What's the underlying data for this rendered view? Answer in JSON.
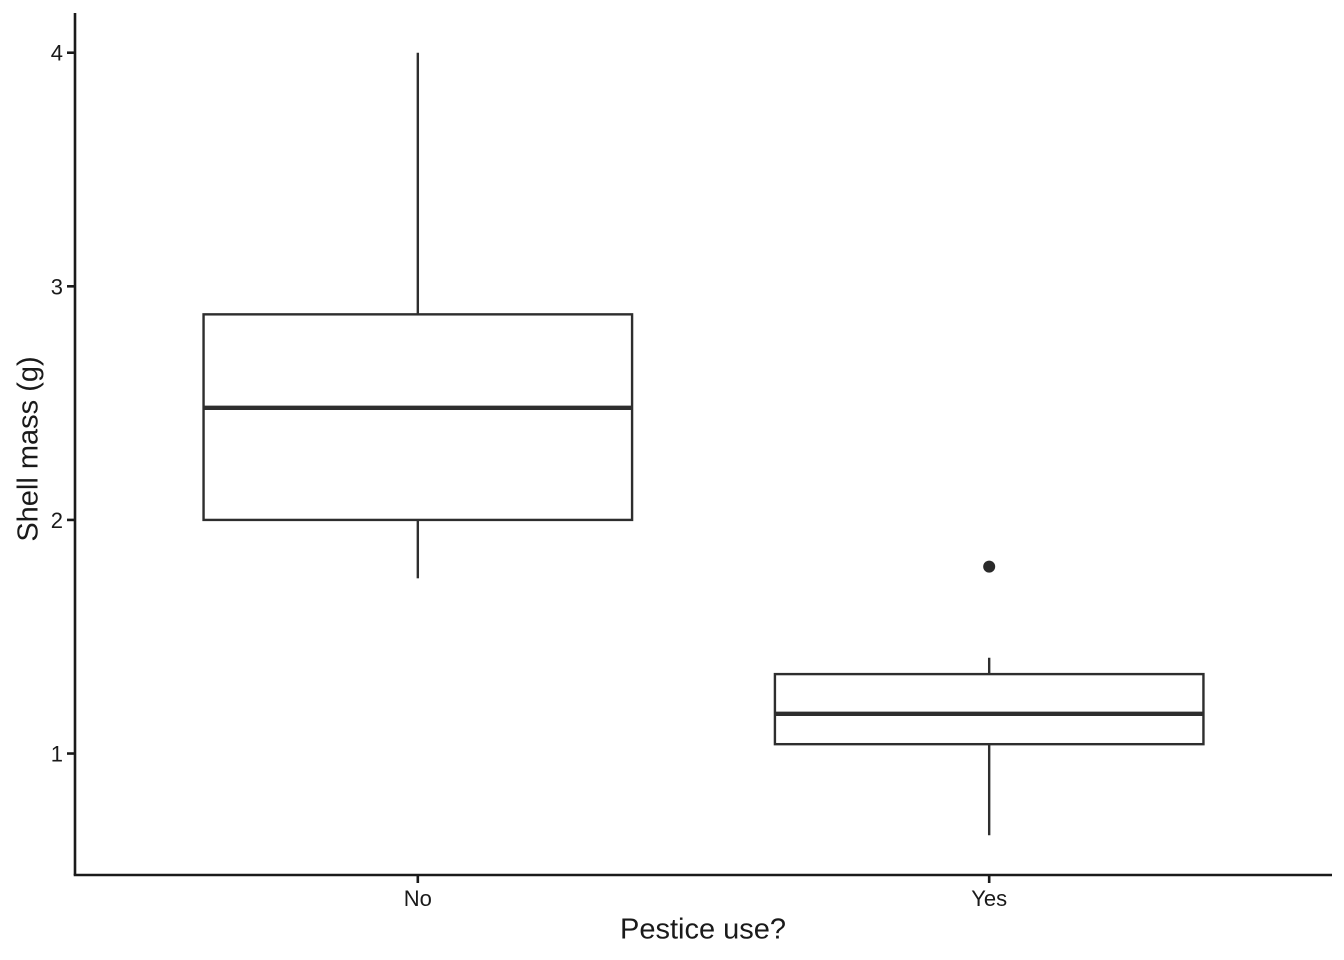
{
  "figure": {
    "background_color": "#ffffff"
  },
  "chart_data": {
    "type": "boxplot",
    "title": "",
    "xlabel": "Pestice use?",
    "ylabel": "Shell mass (g)",
    "categories": [
      "No",
      "Yes"
    ],
    "y_ticks": [
      1,
      2,
      3,
      4
    ],
    "ylim": [
      0.48,
      4.17
    ],
    "grid": false,
    "legend": false,
    "series": [
      {
        "category": "No",
        "whisker_low": 1.75,
        "q1": 2.0,
        "median": 2.48,
        "q3": 2.88,
        "whisker_high": 4.0,
        "outliers": []
      },
      {
        "category": "Yes",
        "whisker_low": 0.65,
        "q1": 1.04,
        "median": 1.17,
        "q3": 1.34,
        "whisker_high": 1.41,
        "outliers": [
          1.8
        ]
      }
    ],
    "style": {
      "box_fill": "#ffffff",
      "box_stroke": "#2e2e2e",
      "median_stroke": "#2e2e2e",
      "whisker_stroke": "#2e2e2e",
      "outlier_color": "#2a2a2a",
      "axis_color": "#1a1a1a",
      "text_color": "#1a1a1a"
    }
  }
}
